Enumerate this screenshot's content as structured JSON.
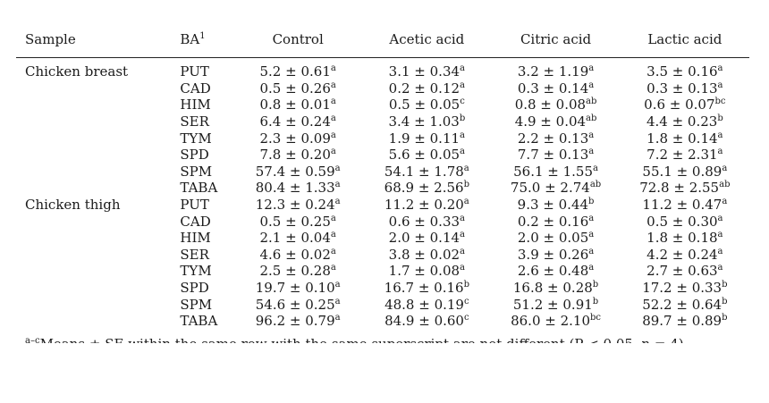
{
  "table": {
    "headers": {
      "sample": "Sample",
      "ba": "BA",
      "ba_sup": "1",
      "control": "Control",
      "acetic": "Acetic acid",
      "citric": "Citric acid",
      "lactic": "Lactic acid"
    },
    "groups": [
      {
        "sample": "Chicken breast",
        "rows": [
          {
            "ba": "PUT",
            "vals": [
              [
                "5.2 ± 0.61",
                "a"
              ],
              [
                "3.1 ± 0.34",
                "a"
              ],
              [
                "3.2 ± 1.19",
                "a"
              ],
              [
                "3.5 ± 0.16",
                "a"
              ]
            ]
          },
          {
            "ba": "CAD",
            "vals": [
              [
                "0.5 ± 0.26",
                "a"
              ],
              [
                "0.2 ± 0.12",
                "a"
              ],
              [
                "0.3 ± 0.14",
                "a"
              ],
              [
                "0.3 ± 0.13",
                "a"
              ]
            ]
          },
          {
            "ba": "HIM",
            "vals": [
              [
                "0.8 ± 0.01",
                "a"
              ],
              [
                "0.5 ± 0.05",
                "c"
              ],
              [
                "0.8 ± 0.08",
                "ab"
              ],
              [
                "0.6 ± 0.07",
                "bc"
              ]
            ]
          },
          {
            "ba": "SER",
            "vals": [
              [
                "6.4 ± 0.24",
                "a"
              ],
              [
                "3.4 ± 1.03",
                "b"
              ],
              [
                "4.9 ± 0.04",
                "ab"
              ],
              [
                "4.4 ± 0.23",
                "b"
              ]
            ]
          },
          {
            "ba": "TYM",
            "vals": [
              [
                "2.3 ± 0.09",
                "a"
              ],
              [
                "1.9 ± 0.11",
                "a"
              ],
              [
                "2.2 ± 0.13",
                "a"
              ],
              [
                "1.8 ± 0.14",
                "a"
              ]
            ]
          },
          {
            "ba": "SPD",
            "vals": [
              [
                "7.8 ± 0.20",
                "a"
              ],
              [
                "5.6 ± 0.05",
                "a"
              ],
              [
                "7.7 ± 0.13",
                "a"
              ],
              [
                "7.2 ± 2.31",
                "a"
              ]
            ]
          },
          {
            "ba": "SPM",
            "vals": [
              [
                "57.4 ± 0.59",
                "a"
              ],
              [
                "54.1 ± 1.78",
                "a"
              ],
              [
                "56.1 ± 1.55",
                "a"
              ],
              [
                "55.1 ± 0.89",
                "a"
              ]
            ]
          },
          {
            "ba": "TABA",
            "vals": [
              [
                "80.4 ± 1.33",
                "a"
              ],
              [
                "68.9 ± 2.56",
                "b"
              ],
              [
                "75.0 ± 2.74",
                "ab"
              ],
              [
                "72.8 ± 2.55",
                "ab"
              ]
            ]
          }
        ]
      },
      {
        "sample": "Chicken thigh",
        "rows": [
          {
            "ba": "PUT",
            "vals": [
              [
                "12.3 ± 0.24",
                "a"
              ],
              [
                "11.2 ± 0.20",
                "a"
              ],
              [
                "9.3 ± 0.44",
                "b"
              ],
              [
                "11.2 ± 0.47",
                "a"
              ]
            ]
          },
          {
            "ba": "CAD",
            "vals": [
              [
                "0.5 ± 0.25",
                "a"
              ],
              [
                "0.6 ± 0.33",
                "a"
              ],
              [
                "0.2 ± 0.16",
                "a"
              ],
              [
                "0.5 ± 0.30",
                "a"
              ]
            ]
          },
          {
            "ba": "HIM",
            "vals": [
              [
                "2.1 ± 0.04",
                "a"
              ],
              [
                "2.0 ± 0.14",
                "a"
              ],
              [
                "2.0 ± 0.05",
                "a"
              ],
              [
                "1.8 ± 0.18",
                "a"
              ]
            ]
          },
          {
            "ba": "SER",
            "vals": [
              [
                "4.6 ± 0.02",
                "a"
              ],
              [
                "3.8 ± 0.02",
                "a"
              ],
              [
                "3.9 ± 0.26",
                "a"
              ],
              [
                "4.2 ± 0.24",
                "a"
              ]
            ]
          },
          {
            "ba": "TYM",
            "vals": [
              [
                "2.5 ± 0.28",
                "a"
              ],
              [
                "1.7 ± 0.08",
                "a"
              ],
              [
                "2.6 ± 0.48",
                "a"
              ],
              [
                "2.7 ± 0.63",
                "a"
              ]
            ]
          },
          {
            "ba": "SPD",
            "vals": [
              [
                "19.7 ± 0.10",
                "a"
              ],
              [
                "16.7 ± 0.16",
                "b"
              ],
              [
                "16.8 ± 0.28",
                "b"
              ],
              [
                "17.2 ± 0.33",
                "b"
              ]
            ]
          },
          {
            "ba": "SPM",
            "vals": [
              [
                "54.6 ± 0.25",
                "a"
              ],
              [
                "48.8 ± 0.19",
                "c"
              ],
              [
                "51.2 ± 0.91",
                "b"
              ],
              [
                "52.2 ± 0.64",
                "b"
              ]
            ]
          },
          {
            "ba": "TABA",
            "vals": [
              [
                "96.2 ± 0.79",
                "a"
              ],
              [
                "84.9 ± 0.60",
                "c"
              ],
              [
                "86.0 ± 2.10",
                "bc"
              ],
              [
                "89.7 ± 0.89",
                "b"
              ]
            ]
          }
        ]
      }
    ]
  },
  "footnote": {
    "sup": "a–c",
    "text": "Means ± SE within the same row with the same superscript are not different (P < 0.05, n = 4)."
  }
}
